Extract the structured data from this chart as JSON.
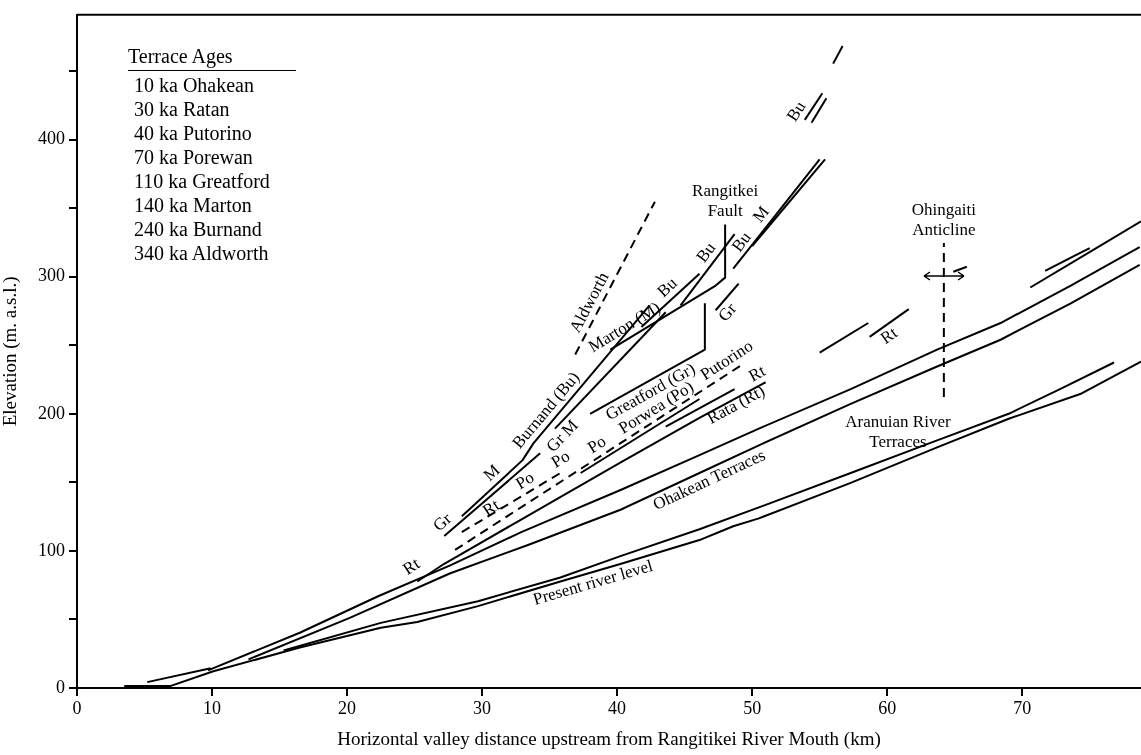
{
  "chart_data": {
    "type": "line",
    "xlabel": "Horizontal valley distance upstream from Rangitikei River Mouth (km)",
    "ylabel": "Elevation (m. a.s.l.)",
    "legend_title": "Terrace Ages",
    "xlim": [
      0,
      78.8
    ],
    "ylim": [
      0,
      491
    ],
    "xticks": [
      0,
      10,
      20,
      30,
      40,
      50,
      60,
      70
    ],
    "yticks": [
      0,
      {
        "value": 50,
        "label": null
      },
      100,
      {
        "value": 150,
        "label": null
      },
      200,
      {
        "value": 250,
        "label": null
      },
      300,
      {
        "value": 350,
        "label": null
      },
      400,
      {
        "value": 450,
        "label": null
      }
    ],
    "marker": "none",
    "line_style": "solid",
    "series": [
      {
        "color": "#000000",
        "x": [
          15.3,
          22.5,
          29.7,
          35.8,
          40.3,
          46.1,
          50.5,
          57.3,
          63.7,
          69,
          72.8,
          76.8
        ],
        "values": [
          27.3,
          47.5,
          63.3,
          80.6,
          96.4,
          115.8,
          131.7,
          156.8,
          180.6,
          200,
          218,
          237.4
        ]
      },
      {
        "color": "#000000",
        "x": [
          3.5,
          6.9,
          10.1,
          16.5,
          22.5,
          25.2,
          29.7,
          35.8,
          40.3,
          46.1,
          48.6,
          50.5,
          57.3,
          63.7,
          69,
          74.3,
          78.8
        ],
        "values": [
          1.4,
          1.4,
          12.2,
          29.5,
          43.9,
          48.2,
          59.7,
          77.7,
          90.6,
          107.9,
          118,
          123.7,
          149.6,
          175.5,
          196.4,
          214.4,
          238.1
        ]
      },
      {
        "color": "#000000",
        "x": [
          5.2,
          9.9
        ],
        "values": [
          4.3,
          14.4
        ]
      },
      {
        "color": "#000000",
        "x": [
          9.7,
          16.5,
          22.3,
          27.6,
          32.9,
          40.3,
          46.1,
          50.5,
          57.3,
          63.7,
          68.4,
          73.6,
          78.7
        ],
        "values": [
          12.9,
          40.3,
          66.9,
          89.2,
          113.7,
          144.6,
          169.8,
          189.2,
          218,
          246.8,
          266.2,
          293.5,
          321.6
        ]
      },
      {
        "color": "#000000",
        "x": [
          12.7,
          20.2,
          27.6,
          33.4,
          40.3,
          46.1,
          50.5,
          57.3,
          63.7,
          68.4,
          73.6,
          78.7
        ],
        "values": [
          20.9,
          51.1,
          83.5,
          104.3,
          130.2,
          156.8,
          177,
          207.2,
          234.5,
          254,
          280.6,
          308.6
        ]
      },
      {
        "color": "#000000",
        "x": [
          25.2,
          27.2,
          32.8,
          40.3,
          46.1,
          51
        ],
        "values": [
          77.7,
          90.6,
          122.3,
          164.7,
          197.1,
          223
        ]
      },
      {
        "color": "#000000",
        "x": [
          43.6,
          48.7
        ],
        "values": [
          190.6,
          218
        ]
      },
      {
        "color": "#000000",
        "x": [
          55,
          58.6
        ],
        "values": [
          244.6,
          266.2
        ]
      },
      {
        "color": "#000000",
        "x": [
          58.7,
          61.6
        ],
        "values": [
          256.1,
          276.3
        ]
      },
      {
        "color": "#000000",
        "line_style": "dashed",
        "x": [
          28,
          49.4
        ],
        "values": [
          100.7,
          236.7
        ]
      },
      {
        "color": "#000000",
        "line_style": "dashed",
        "x": [
          28.5,
          35.8
        ],
        "values": [
          113.7,
          156.8
        ]
      },
      {
        "color": "#000000",
        "x": [
          37.3,
          46.1
        ],
        "values": [
          156.8,
          210.8
        ]
      },
      {
        "color": "#000000",
        "x": [
          27.2,
          34.3
        ],
        "values": [
          110.8,
          171.2
        ]
      },
      {
        "color": "#000000",
        "x": [
          35.4,
          43.6
        ],
        "values": [
          189.2,
          274.1
        ]
      },
      {
        "color": "#000000",
        "x": [
          38,
          46.5,
          46.5
        ],
        "values": [
          200,
          246.8,
          280.6
        ]
      },
      {
        "color": "#000000",
        "x": [
          47.3,
          49
        ],
        "values": [
          275.5,
          295
        ]
      },
      {
        "color": "#000000",
        "x": [
          39.5,
          47.3,
          48,
          48
        ],
        "values": [
          246.8,
          293.5,
          299.3,
          338.1
        ]
      },
      {
        "color": "#000000",
        "x": [
          48.6,
          55
        ],
        "values": [
          305.8,
          385.6
        ]
      },
      {
        "color": "#000000",
        "x": [
          50,
          55.4
        ],
        "values": [
          322.3,
          385.6
        ]
      },
      {
        "color": "#000000",
        "x": [
          28.5,
          33,
          33.8,
          42.4
        ],
        "values": [
          125.2,
          166.2,
          178.4,
          279.1
        ]
      },
      {
        "color": "#000000",
        "x": [
          41.8,
          46.1
        ],
        "values": [
          263.3,
          302.2
        ]
      },
      {
        "color": "#000000",
        "x": [
          44.7,
          48.7
        ],
        "values": [
          279.1,
          331
        ]
      },
      {
        "color": "#000000",
        "x": [
          53.9,
          55.2
        ],
        "values": [
          414.4,
          433.8
        ]
      },
      {
        "color": "#000000",
        "x": [
          54.4,
          55.5
        ],
        "values": [
          412.2,
          430.2
        ]
      },
      {
        "color": "#000000",
        "x": [
          56,
          56.7
        ],
        "values": [
          455.4,
          468.3
        ]
      },
      {
        "color": "#000000",
        "line_style": "dashed",
        "x": [
          36.9,
          42.8
        ],
        "values": [
          243.2,
          354.7
        ]
      },
      {
        "color": "#000000",
        "x": [
          70.6,
          78.8
        ],
        "values": [
          292.1,
          340.3
        ]
      },
      {
        "color": "#000000",
        "x": [
          71.7,
          75
        ],
        "values": [
          304.3,
          320.9
        ]
      },
      {
        "color": "#000000",
        "x": [
          64.9,
          65.9
        ],
        "values": [
          303.6,
          307.2
        ]
      },
      {
        "color": "#000000",
        "line_style": "dashed",
        "x": [
          64.2,
          64.2
        ],
        "values": [
          212.2,
          324.5
        ]
      }
    ],
    "annotations": [
      "10 ka Ohakean",
      "30 ka Ratan",
      "40 ka Putorino",
      "70 ka Porewan",
      "110 ka Greatford",
      "140 ka Marton",
      "240 ka Burnand",
      "340 ka Aldworth",
      {
        "text": "Rt",
        "x": 25.4,
        "y": 79
      },
      {
        "text": "Gr",
        "x": 28.3,
        "y": 120.2
      },
      {
        "text": "M",
        "x": 31.3,
        "y": 150.7
      },
      {
        "text": "Po",
        "x": 32.1,
        "y": 134.9
      },
      {
        "text": "Rt",
        "x": 31.3,
        "y": 121.7
      },
      {
        "text": "Burnand (Bu)",
        "x": 35.4,
        "y": 197.1
      },
      {
        "text": "Aldworth",
        "x": 38.7,
        "y": 277.2
      },
      {
        "text": "Gr M",
        "x": 36,
        "y": 195.4
      },
      {
        "text": "Bu",
        "x": 44.3,
        "y": 285.9
      },
      {
        "text": "Bu",
        "x": 46.2,
        "y": 298.6
      },
      {
        "text": "Bu",
        "x": 47,
        "y": 308.9
      },
      {
        "text": "Marton (M)",
        "x": 41,
        "y": 255.8
      },
      {
        "text": "Gr",
        "x": 47.6,
        "y": 278.9
      },
      {
        "text": "Greatford (Gr)",
        "x": 42.1,
        "y": 222.6
      },
      {
        "text": "Po",
        "x": 35.5,
        "y": 155
      },
      {
        "text": "Po",
        "x": 37.6,
        "y": 158.6
      },
      {
        "text": "Porwea (Po)",
        "x": 42,
        "y": 185.5
      },
      {
        "text": "Putorino",
        "x": 48,
        "y": 224.7
      },
      {
        "text": "Rata (Rt)",
        "x": 48.3,
        "y": 215.8
      },
      {
        "text": "Ohakean Terraces",
        "x": 46.5,
        "y": 158.6
      },
      {
        "text": "Present river level",
        "x": 38,
        "y": 84
      },
      {
        "text": "Rt",
        "x": 50,
        "y": 217.7
      },
      {
        "text": "Rt",
        "x": 59.7,
        "y": 263.1
      },
      {
        "text": "M",
        "x": 50.8,
        "y": 333.2
      },
      {
        "text": "Bu",
        "x": 54,
        "y": 415.9
      },
      {
        "text": "Rangitkei\nFault",
        "x": 48,
        "y": 338.1
      },
      {
        "text": "Ohingaiti\nAnticline",
        "x": 64.2,
        "y": 324.5
      },
      {
        "text": "Aranuian River\nTerraces",
        "x": 60.8,
        "y": 169.8
      }
    ]
  }
}
